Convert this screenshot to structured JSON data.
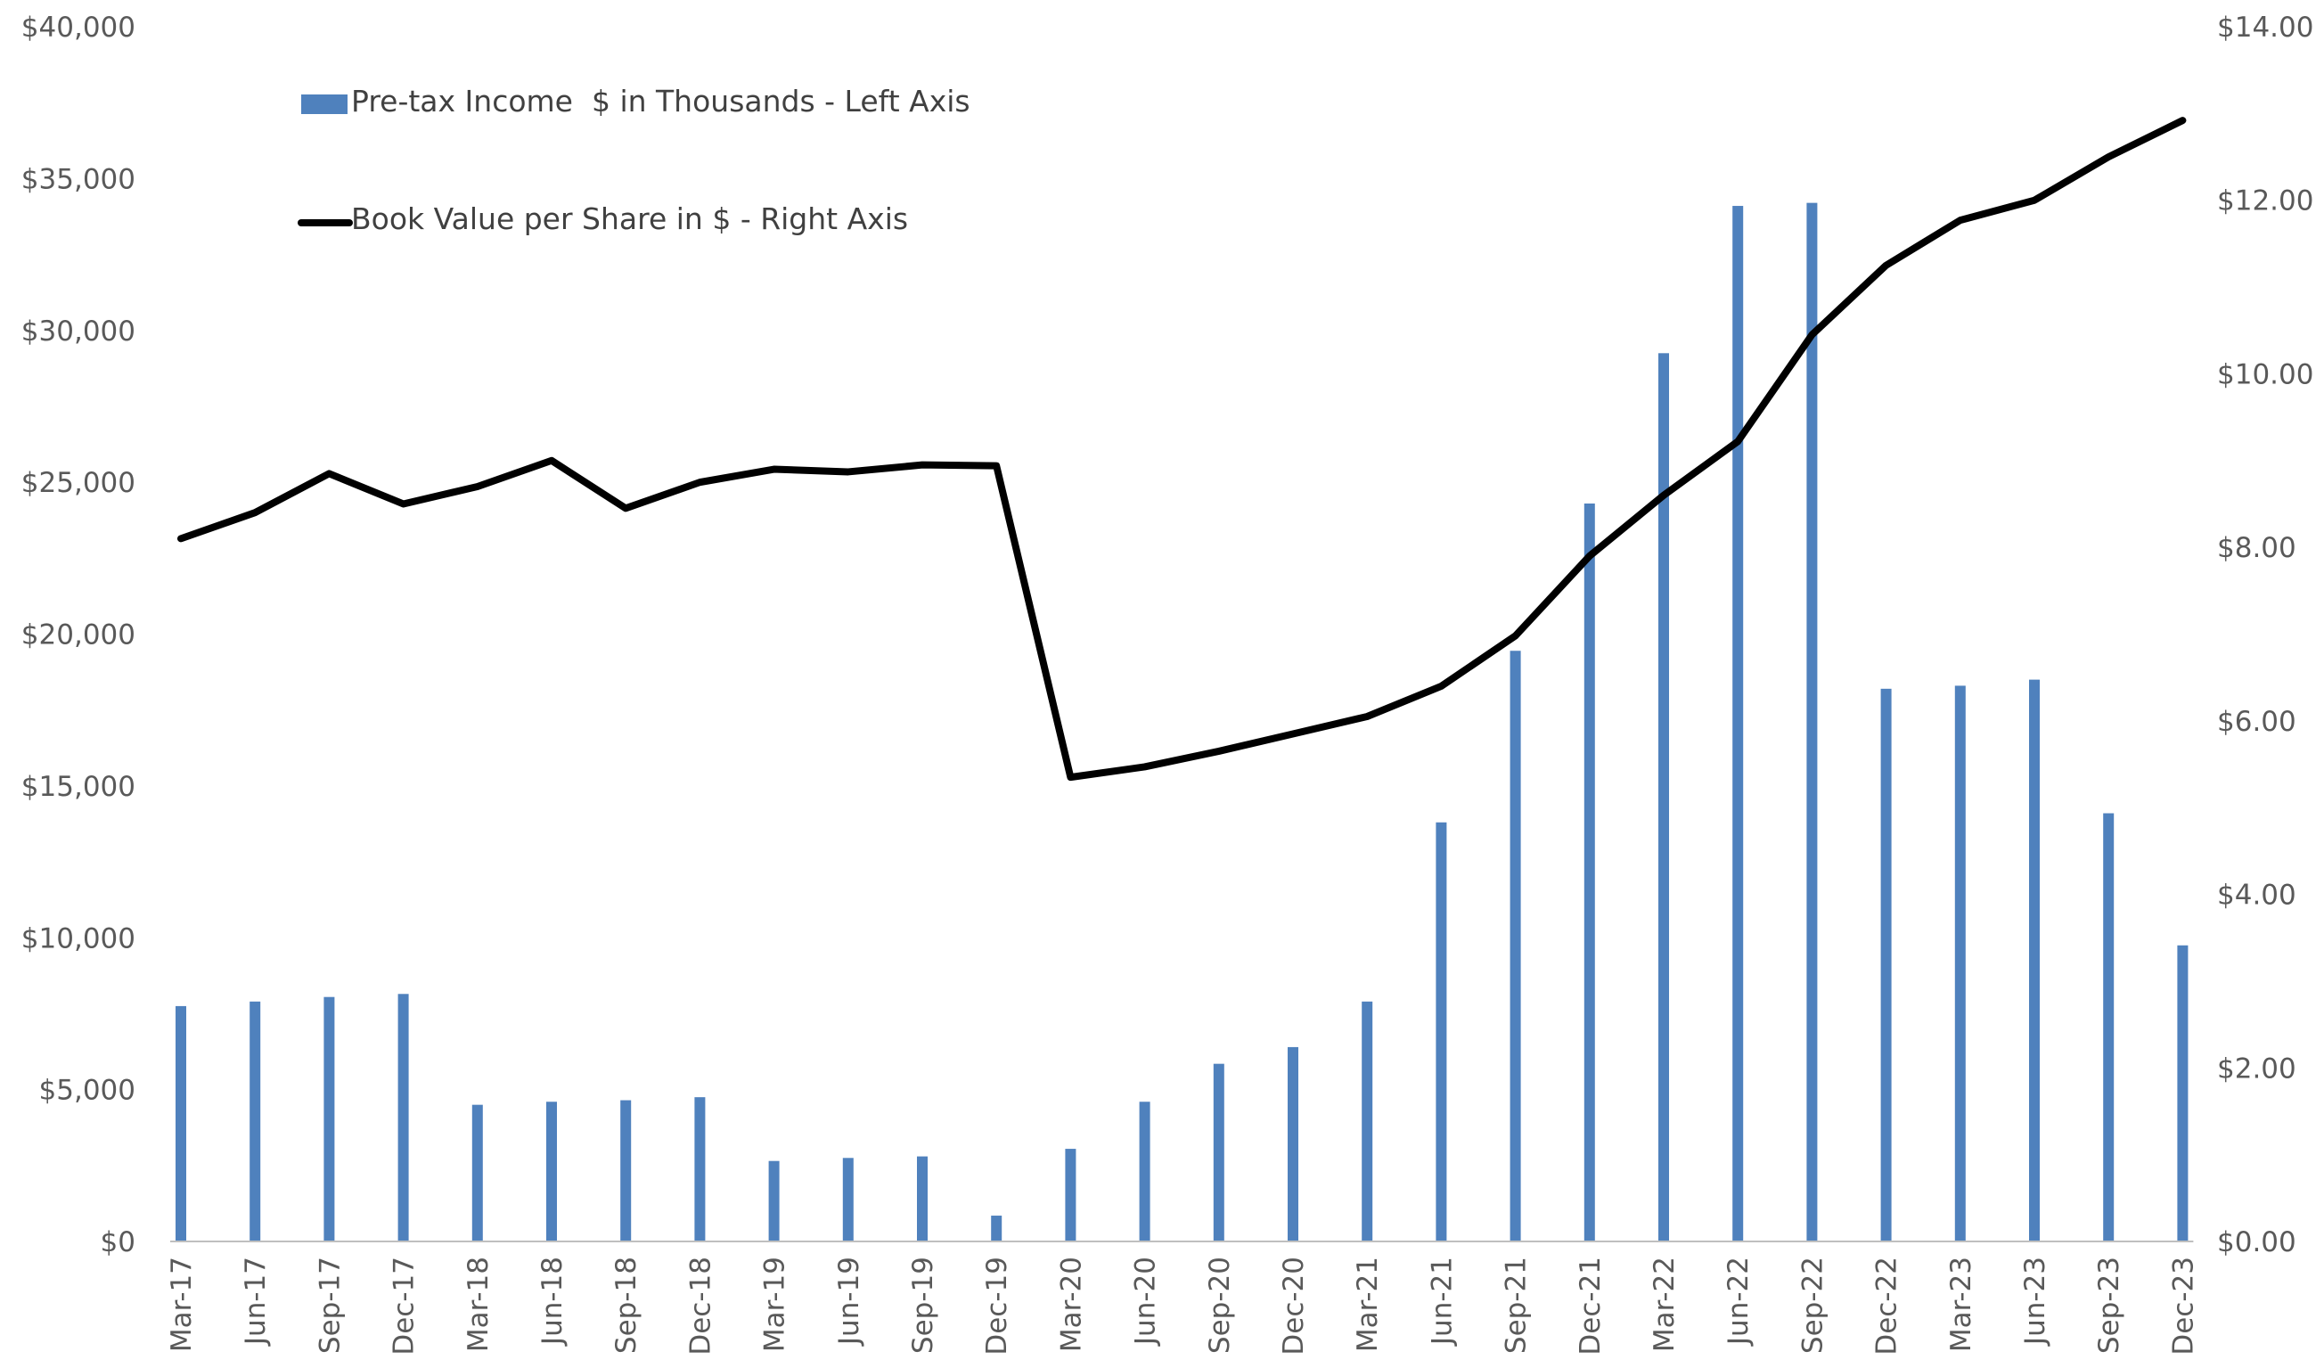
{
  "chart_data": {
    "type": "bar+line",
    "categories": [
      "Mar-17",
      "Jun-17",
      "Sep-17",
      "Dec-17",
      "Mar-18",
      "Jun-18",
      "Sep-18",
      "Dec-18",
      "Mar-19",
      "Jun-19",
      "Sep-19",
      "Dec-19",
      "Mar-20",
      "Jun-20",
      "Sep-20",
      "Dec-20",
      "Mar-21",
      "Jun-21",
      "Sep-21",
      "Dec-21",
      "Mar-22",
      "Jun-22",
      "Sep-22",
      "Dec-22",
      "Mar-23",
      "Jun-23",
      "Sep-23",
      "Dec-23"
    ],
    "series": [
      {
        "name": "Pre-tax Income  $ in Thousands - Left Axis",
        "type": "bar",
        "axis": "left",
        "color": "#4f81bd",
        "values": [
          7750,
          7900,
          8050,
          8150,
          4500,
          4600,
          4650,
          4750,
          2650,
          2750,
          2800,
          850,
          3050,
          4600,
          5850,
          6400,
          7900,
          13800,
          19450,
          24300,
          29250,
          34100,
          34200,
          18200,
          18300,
          18500,
          14100,
          9750
        ]
      },
      {
        "name": "Book Value per Share in $ - Right Axis",
        "type": "line",
        "axis": "right",
        "color": "#000000",
        "values": [
          8.1,
          8.4,
          8.85,
          8.5,
          8.7,
          9.0,
          8.45,
          8.75,
          8.9,
          8.87,
          8.95,
          8.94,
          5.35,
          5.47,
          5.65,
          5.85,
          6.05,
          6.4,
          6.98,
          7.9,
          8.6,
          9.22,
          10.45,
          11.25,
          11.77,
          12.0,
          12.5,
          12.92
        ]
      }
    ],
    "left_axis": {
      "ylim": [
        0,
        40000
      ],
      "ticks": [
        "$0",
        "$5,000",
        "$10,000",
        "$15,000",
        "$20,000",
        "$25,000",
        "$30,000",
        "$35,000",
        "$40,000"
      ]
    },
    "right_axis": {
      "ylim": [
        0,
        14
      ],
      "ticks": [
        "$0.00",
        "$2.00",
        "$4.00",
        "$6.00",
        "$8.00",
        "$10.00",
        "$12.00",
        "$14.00"
      ]
    },
    "grid": false,
    "legend_position": "top-left",
    "title": "",
    "xlabel": "",
    "ylabel": ""
  }
}
